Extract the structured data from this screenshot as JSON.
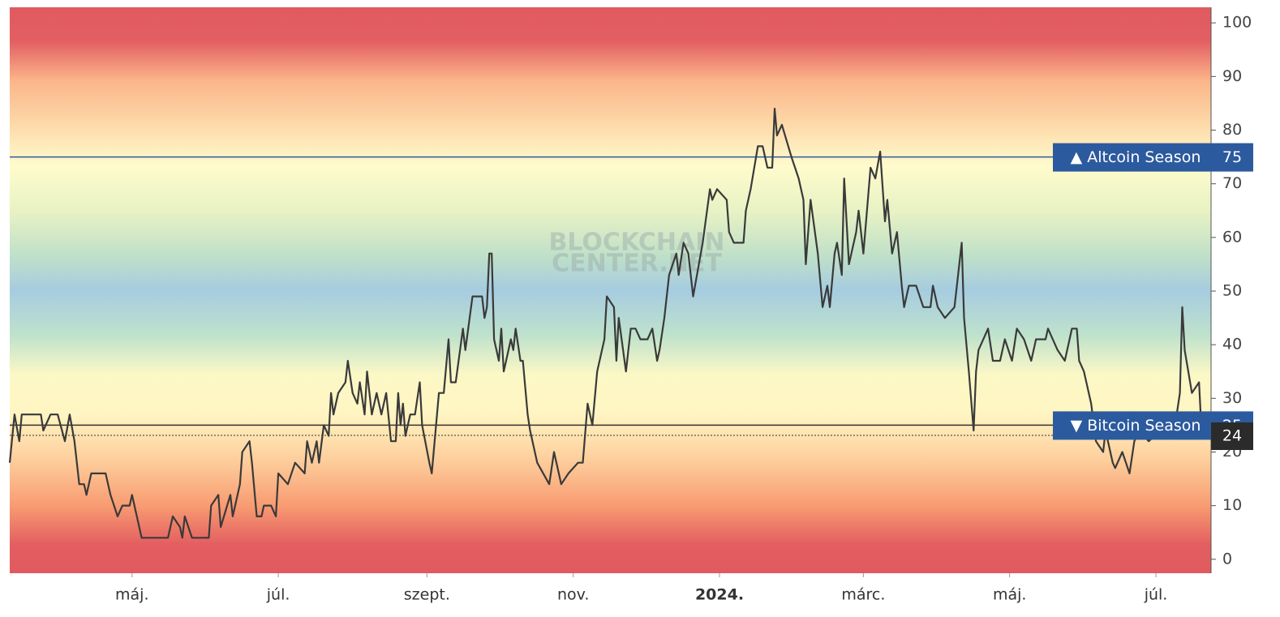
{
  "chart_data": {
    "type": "line",
    "watermark": [
      "BLOCKCHAIN",
      "CENTER.NET"
    ],
    "x": [
      0,
      2,
      4,
      5,
      13,
      14,
      17,
      20,
      23,
      25,
      27,
      29,
      31,
      32,
      34,
      40,
      42,
      45,
      47,
      50,
      51,
      53,
      55,
      66,
      68,
      71,
      72,
      73,
      76,
      83,
      84,
      87,
      88,
      92,
      93,
      96,
      97,
      100,
      101,
      103,
      105,
      106,
      109,
      111,
      112,
      116,
      119,
      123,
      124,
      126,
      128,
      129,
      131,
      133,
      134,
      135,
      137,
      140,
      141,
      143,
      145,
      146,
      148,
      149,
      151,
      153,
      155,
      157,
      159,
      161,
      162,
      163,
      164,
      165,
      167,
      169,
      171,
      172,
      175,
      176,
      179,
      181,
      183,
      184,
      186,
      189,
      190,
      193,
      197,
      198,
      199,
      200,
      201,
      202,
      204,
      205,
      206,
      209,
      210,
      211,
      213,
      214,
      216,
      217,
      220,
      225,
      227,
      230,
      233,
      237,
      239,
      241,
      243,
      245,
      248,
      249,
      252,
      253,
      254,
      257,
      259,
      261,
      263,
      266,
      268,
      270,
      271,
      273,
      275,
      278,
      279,
      281,
      283,
      285,
      289,
      292,
      293,
      295,
      299,
      300,
      302,
      306,
      307,
      309,
      312,
      314,
      316,
      318,
      319,
      320,
      322,
      326,
      329,
      331,
      332,
      334,
      337,
      339,
      341,
      342,
      344,
      345,
      347,
      348,
      350,
      353,
      354,
      356,
      359,
      361,
      363,
      365,
      366,
      368,
      370,
      372,
      373,
      375,
      378,
      381,
      384,
      385,
      387,
      390,
      394,
      397,
      398,
      400,
      402,
      403,
      404,
      408,
      410,
      413,
      415,
      418,
      420,
      423,
      426,
      428,
      432,
      433,
      437,
      440,
      443,
      445,
      446,
      448,
      451,
      453,
      456,
      457,
      460,
      461,
      464,
      467,
      469,
      471,
      475,
      480,
      481,
      483,
      486,
      488,
      489,
      490,
      493,
      496,
      497,
      501
    ],
    "series": [
      {
        "color": "#3a3a3a",
        "values": [
          18,
          27,
          22,
          27,
          27,
          24,
          27,
          27,
          22,
          27,
          22,
          14,
          14,
          12,
          16,
          16,
          12,
          8,
          10,
          10,
          12,
          8,
          4,
          4,
          8,
          6,
          4,
          8,
          4,
          4,
          10,
          12,
          6,
          12,
          8,
          14,
          20,
          22,
          18,
          8,
          8,
          10,
          10,
          8,
          16,
          14,
          18,
          16,
          22,
          18,
          22,
          18,
          25,
          23,
          31,
          27,
          31,
          33,
          37,
          31,
          29,
          33,
          27,
          35,
          27,
          31,
          27,
          31,
          22,
          22,
          31,
          25,
          29,
          23,
          27,
          27,
          33,
          25,
          18,
          16,
          31,
          31,
          41,
          33,
          33,
          43,
          39,
          49,
          49,
          45,
          47,
          57,
          57,
          41,
          37,
          43,
          35,
          41,
          39,
          43,
          37,
          37,
          27,
          24,
          18,
          14,
          20,
          14,
          16,
          18,
          18,
          29,
          25,
          35,
          41,
          49,
          47,
          37,
          45,
          35,
          43,
          43,
          41,
          41,
          43,
          37,
          39,
          45,
          53,
          57,
          53,
          59,
          57,
          49,
          59,
          69,
          67,
          69,
          67,
          61,
          59,
          59,
          65,
          69,
          77,
          77,
          73,
          73,
          84,
          79,
          81,
          75,
          71,
          67,
          55,
          67,
          57,
          47,
          51,
          47,
          57,
          59,
          53,
          71,
          55,
          61,
          65,
          57,
          73,
          71,
          76,
          63,
          67,
          57,
          61,
          51,
          47,
          51,
          51,
          47,
          47,
          51,
          47,
          45,
          47,
          59,
          45,
          35,
          24,
          35,
          39,
          43,
          37,
          37,
          41,
          37,
          43,
          41,
          37,
          41,
          41,
          43,
          39,
          37,
          43,
          43,
          37,
          35,
          29,
          22,
          20,
          24,
          18,
          17,
          20,
          16,
          22,
          24,
          22,
          24,
          27,
          24,
          25,
          31,
          47,
          39,
          31,
          33,
          24,
          24
        ]
      }
    ],
    "xlim": [
      0,
      501
    ],
    "ylim": [
      -2.6,
      102.9
    ],
    "xticks": [
      {
        "value": 51,
        "label": "máj."
      },
      {
        "value": 112,
        "label": "júl."
      },
      {
        "value": 174,
        "label": "szept."
      },
      {
        "value": 235,
        "label": "nov."
      },
      {
        "value": 296,
        "label": "2024."
      },
      {
        "value": 356,
        "label": "márc."
      },
      {
        "value": 417,
        "label": "máj."
      },
      {
        "value": 478,
        "label": "júl."
      }
    ],
    "yticks": [
      0,
      10,
      20,
      30,
      40,
      50,
      60,
      70,
      80,
      90,
      100
    ],
    "thresholds": [
      {
        "label": "▲ Altcoin Season",
        "value": 75,
        "color": "#2c5a9e"
      },
      {
        "label": "▼ Bitcoin Season",
        "value": 25,
        "color": "#2c5a9e"
      }
    ]
  }
}
